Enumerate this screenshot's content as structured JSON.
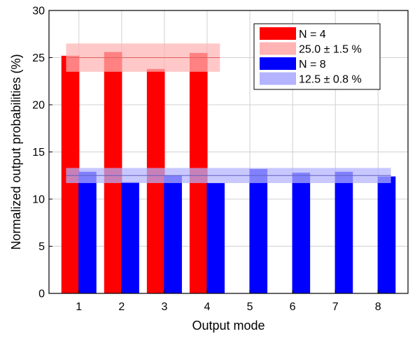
{
  "chart_data": {
    "type": "bar",
    "xlabel": "Output mode",
    "ylabel": "Normalized output probabilities (%)",
    "xlim": [
      0.3,
      8.7
    ],
    "ylim": [
      0,
      30
    ],
    "xticks": [
      1,
      2,
      3,
      4,
      5,
      6,
      7,
      8
    ],
    "yticks": [
      0,
      5,
      10,
      15,
      20,
      25,
      30
    ],
    "grid": true,
    "legend_position": "top-right",
    "series": [
      {
        "name": "N = 4",
        "color": "#ff0000",
        "x": [
          1,
          2,
          3,
          4
        ],
        "values": [
          25.2,
          25.6,
          23.8,
          25.5
        ]
      },
      {
        "name": "N = 8",
        "color": "#0000ff",
        "x": [
          1,
          2,
          3,
          4,
          5,
          6,
          7,
          8
        ],
        "values": [
          12.9,
          11.8,
          12.5,
          11.7,
          13.2,
          12.8,
          12.9,
          12.4
        ]
      }
    ],
    "bands": [
      {
        "name": "25.0 ± 1.5 %",
        "center": 25.0,
        "half_width": 1.5,
        "x_range": [
          0.7,
          4.3
        ],
        "fill": "#ffb3b3",
        "line": "#e06060"
      },
      {
        "name": "12.5 ± 0.8 %",
        "center": 12.5,
        "half_width": 0.8,
        "x_range": [
          0.7,
          8.3
        ],
        "fill": "#b3b3ff",
        "line": "#6060c0"
      }
    ],
    "legend": [
      {
        "label": "N = 4",
        "color": "#ff0000"
      },
      {
        "label": "25.0 ± 1.5 %",
        "color": "#ffb3b3"
      },
      {
        "label": "N = 8",
        "color": "#0000ff"
      },
      {
        "label": "12.5 ± 0.8 %",
        "color": "#b3b3ff"
      }
    ]
  }
}
